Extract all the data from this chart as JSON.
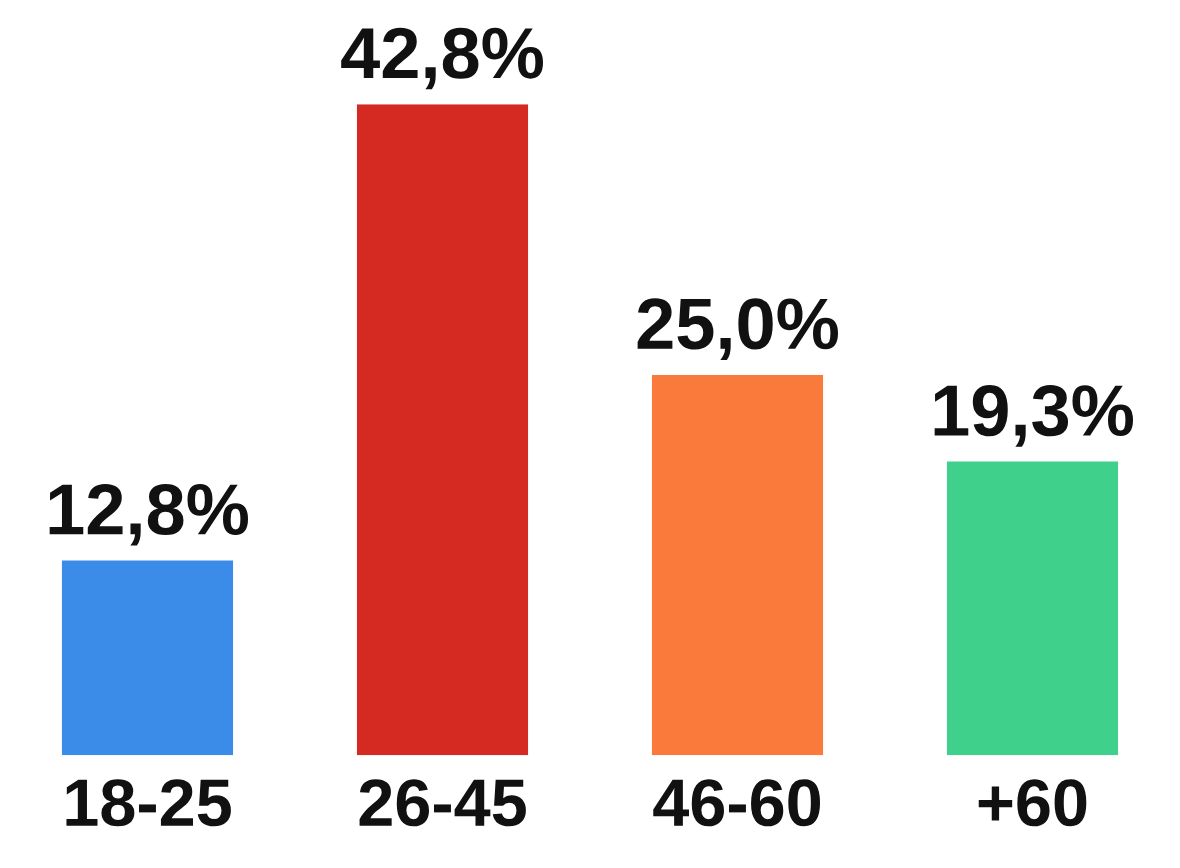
{
  "chart_data": {
    "type": "bar",
    "categories": [
      "18-25",
      "26-45",
      "46-60",
      "+60"
    ],
    "values": [
      12.8,
      42.8,
      25.0,
      19.3
    ],
    "colors": [
      "#3a8ce8",
      "#d42a22",
      "#fa7a3c",
      "#3fd08c"
    ],
    "value_labels": [
      "12,8%",
      "42,8%",
      "25,0%",
      "19,3%"
    ],
    "grid": false,
    "legend": false
  }
}
